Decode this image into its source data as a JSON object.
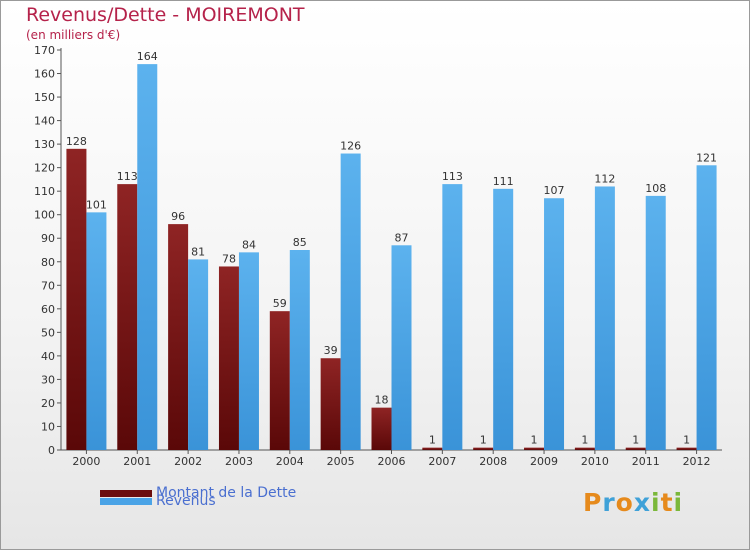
{
  "header": {
    "title": "Revenus/Dette - MOIREMONT",
    "subtitle": "(en milliers d'€)"
  },
  "chart_data": {
    "type": "bar",
    "categories": [
      "2000",
      "2001",
      "2002",
      "2003",
      "2004",
      "2005",
      "2006",
      "2007",
      "2008",
      "2009",
      "2010",
      "2011",
      "2012"
    ],
    "series": [
      {
        "name": "Montant de la Dette",
        "color": "#7a0f0f",
        "values": [
          128,
          113,
          96,
          78,
          59,
          39,
          18,
          1,
          1,
          1,
          1,
          1,
          1
        ]
      },
      {
        "name": "Revenus",
        "color": "#4aa3e6",
        "values": [
          101,
          164,
          81,
          84,
          85,
          126,
          87,
          113,
          111,
          107,
          112,
          108,
          121
        ]
      }
    ],
    "ylim": [
      0,
      170
    ],
    "yticks": [
      0,
      10,
      20,
      30,
      40,
      50,
      60,
      70,
      80,
      90,
      100,
      110,
      120,
      130,
      140,
      150,
      160,
      170
    ],
    "grid": false,
    "legend_position": "bottom-left"
  },
  "legend": [
    {
      "label": "Montant de la Dette",
      "color": "#6b0d0d"
    },
    {
      "label": "Revenus",
      "color": "#4aa3e6"
    }
  ],
  "logo": {
    "text": "Proxiti",
    "letters": [
      {
        "ch": "P",
        "color": "#e68a1c"
      },
      {
        "ch": "r",
        "color": "#3fa1d8"
      },
      {
        "ch": "o",
        "color": "#e68a1c"
      },
      {
        "ch": "x",
        "color": "#3fa1d8"
      },
      {
        "ch": "i",
        "color": "#7bb83a"
      },
      {
        "ch": "t",
        "color": "#e68a1c"
      },
      {
        "ch": "i",
        "color": "#7bb83a"
      }
    ]
  }
}
